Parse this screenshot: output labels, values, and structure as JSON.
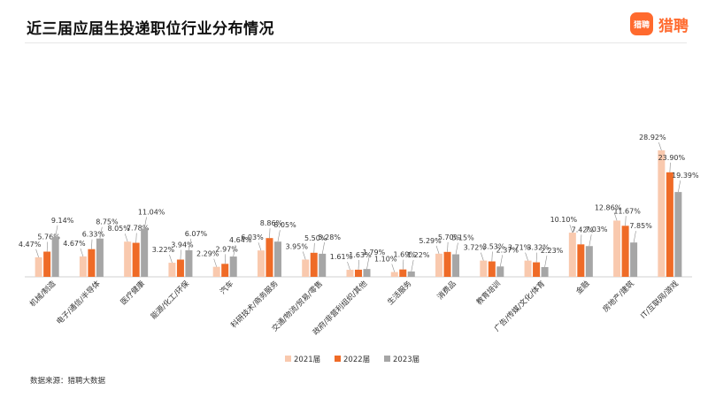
{
  "header": {
    "title": "近三届应届生投递职位行业分布情况",
    "brand_logo_text": "猎聘",
    "brand_name": "猎聘"
  },
  "footer": {
    "source": "数据来源：猎聘大数据"
  },
  "colors": {
    "accent": "#ff6a2e",
    "series": [
      "#f9c9ae",
      "#ef6b27",
      "#a6a6a6"
    ]
  },
  "chart_data": {
    "type": "bar",
    "categories": [
      "机械/制造",
      "电子/通信/半导体",
      "医疗健康",
      "能源/化工/环保",
      "汽车",
      "科研技术/商务服务",
      "交通/物流/贸易/零售",
      "政府/非营利组织/其他",
      "生活服务",
      "消费品",
      "教育培训",
      "广告/传媒/文化/体育",
      "金融",
      "房地产/建筑",
      "IT/互联网/游戏"
    ],
    "series": [
      {
        "name": "2021届",
        "values": [
          4.47,
          4.67,
          8.05,
          3.22,
          2.29,
          6.03,
          3.95,
          1.61,
          1.1,
          5.29,
          3.72,
          3.71,
          10.1,
          12.86,
          28.92
        ]
      },
      {
        "name": "2022届",
        "values": [
          5.76,
          6.33,
          7.78,
          3.94,
          2.97,
          8.86,
          5.5,
          1.63,
          1.69,
          5.7,
          3.53,
          3.32,
          7.42,
          11.67,
          23.9
        ]
      },
      {
        "name": "2023届",
        "values": [
          9.14,
          8.75,
          11.04,
          6.07,
          4.64,
          8.05,
          5.28,
          1.79,
          1.22,
          5.15,
          2.37,
          2.23,
          7.03,
          7.85,
          19.39
        ]
      }
    ],
    "unit_suffix": "%",
    "ylim": [
      0,
      30
    ],
    "legend_position": "bottom",
    "grid": false
  }
}
